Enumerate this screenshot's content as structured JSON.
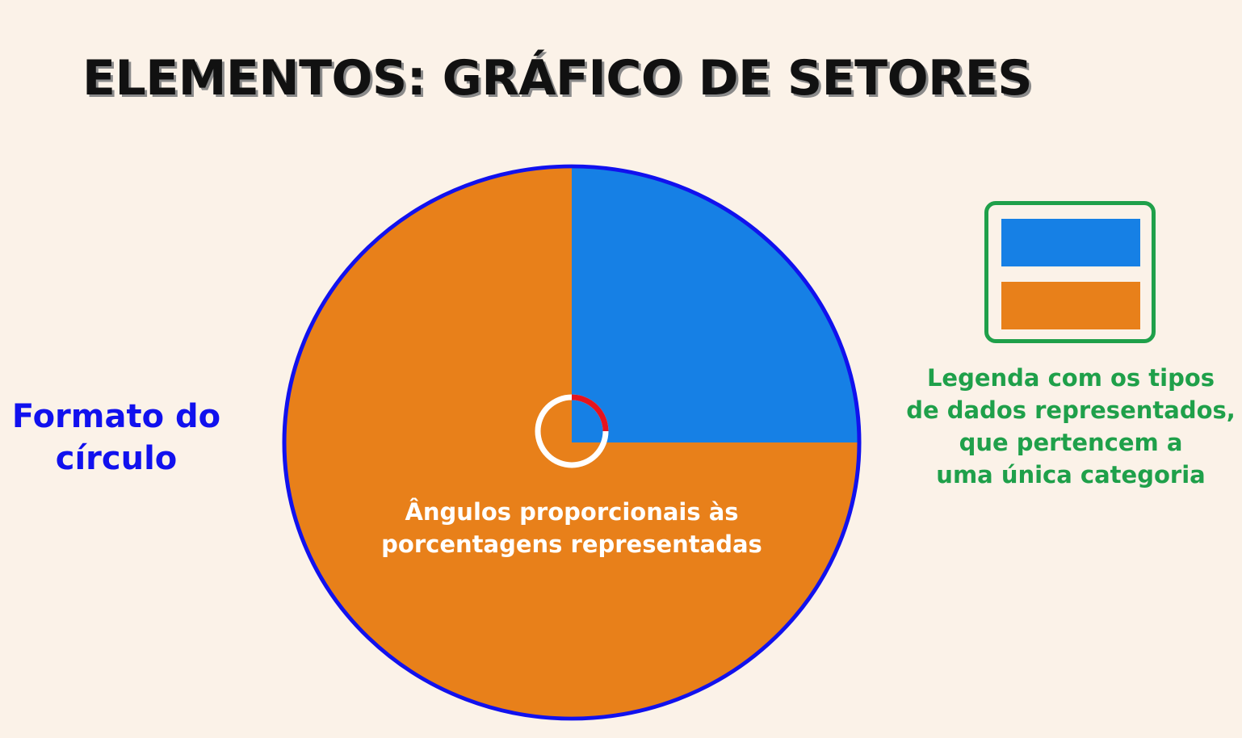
{
  "title": "ELEMENTOS: GRÁFICO DE SETORES",
  "circle_label": {
    "lines": [
      "Formato do",
      "círculo"
    ],
    "color": "#1111ee"
  },
  "angle_label": {
    "lines": [
      "Ângulos proporcionais às",
      "porcentagens representadas"
    ],
    "color": "#ffffff"
  },
  "legend_label": {
    "lines": [
      "Legenda com os tipos",
      "de dados representados,",
      "que pertencem a",
      "uma única categoria"
    ],
    "color": "#1fa04a"
  },
  "colors": {
    "background": "#fbf2e8",
    "circle_outline": "#1111ee",
    "angle_marker": "#e5141e",
    "angle_ring": "#ffffff",
    "legend_border": "#1fa04a"
  },
  "chart_data": {
    "type": "pie",
    "slices": [
      {
        "value": 25,
        "color": "#1680e5"
      },
      {
        "value": 75,
        "color": "#e8801a"
      }
    ]
  }
}
